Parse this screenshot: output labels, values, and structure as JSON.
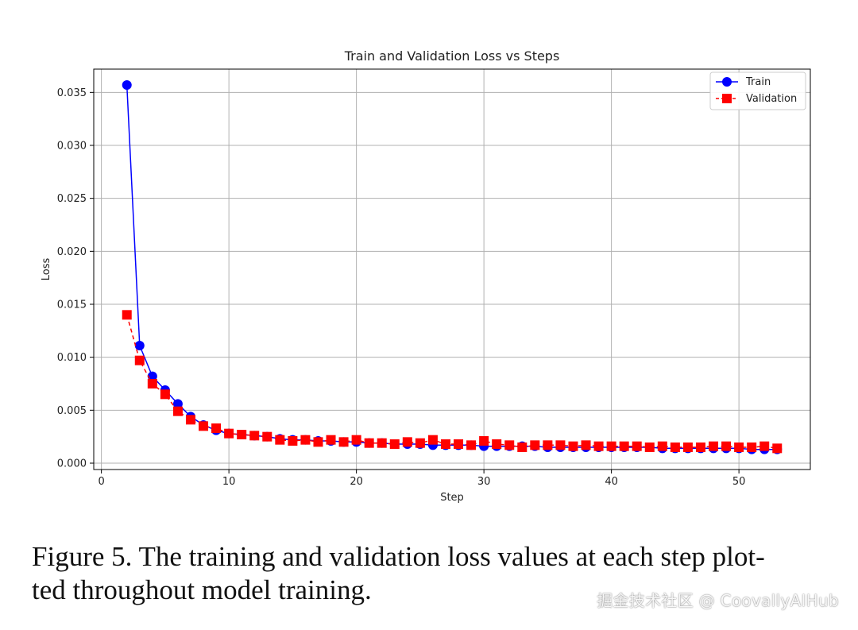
{
  "chart_data": {
    "type": "line",
    "title": "Train and Validation Loss vs Steps",
    "xlabel": "Step",
    "ylabel": "Loss",
    "xlim": [
      -0.6,
      55.6
    ],
    "ylim": [
      -0.0006,
      0.0372
    ],
    "xticks": [
      0,
      10,
      20,
      30,
      40,
      50
    ],
    "xtick_labels": [
      "0",
      "10",
      "20",
      "30",
      "40",
      "50"
    ],
    "yticks": [
      0.0,
      0.005,
      0.01,
      0.015,
      0.02,
      0.025,
      0.03,
      0.035
    ],
    "ytick_labels": [
      "0.000",
      "0.005",
      "0.010",
      "0.015",
      "0.020",
      "0.025",
      "0.030",
      "0.035"
    ],
    "grid": true,
    "legend_position": "top-right",
    "x": [
      2,
      3,
      4,
      5,
      6,
      7,
      8,
      9,
      10,
      11,
      12,
      13,
      14,
      15,
      16,
      17,
      18,
      19,
      20,
      21,
      22,
      23,
      24,
      25,
      26,
      27,
      28,
      29,
      30,
      31,
      32,
      33,
      34,
      35,
      36,
      37,
      38,
      39,
      40,
      41,
      42,
      43,
      44,
      45,
      46,
      47,
      48,
      49,
      50,
      51,
      52,
      53
    ],
    "series": [
      {
        "name": "Train",
        "color": "#0000ff",
        "marker": "circle",
        "linestyle": "solid",
        "values": [
          0.0357,
          0.0111,
          0.0082,
          0.0069,
          0.0056,
          0.0044,
          0.0036,
          0.0031,
          0.0028,
          0.0027,
          0.0026,
          0.0025,
          0.0023,
          0.0022,
          0.0022,
          0.0021,
          0.0021,
          0.002,
          0.002,
          0.0019,
          0.0019,
          0.0018,
          0.0018,
          0.0018,
          0.0017,
          0.0017,
          0.0017,
          0.0017,
          0.0016,
          0.0016,
          0.0016,
          0.0016,
          0.0016,
          0.0015,
          0.0015,
          0.0015,
          0.0015,
          0.0015,
          0.0015,
          0.0015,
          0.0015,
          0.0015,
          0.0014,
          0.0014,
          0.0014,
          0.0014,
          0.0014,
          0.0014,
          0.0014,
          0.0013,
          0.0013,
          0.0013
        ]
      },
      {
        "name": "Validation",
        "color": "#ff0000",
        "marker": "square",
        "linestyle": "dashed",
        "values": [
          0.014,
          0.0097,
          0.0075,
          0.0065,
          0.0049,
          0.0041,
          0.0035,
          0.0033,
          0.0028,
          0.0027,
          0.0026,
          0.0025,
          0.0022,
          0.0021,
          0.0022,
          0.002,
          0.0022,
          0.002,
          0.0022,
          0.0019,
          0.0019,
          0.0018,
          0.002,
          0.0019,
          0.0022,
          0.0018,
          0.0018,
          0.0017,
          0.0021,
          0.0018,
          0.0017,
          0.0015,
          0.0017,
          0.0017,
          0.0017,
          0.0016,
          0.0017,
          0.0016,
          0.0016,
          0.0016,
          0.0016,
          0.0015,
          0.0016,
          0.0015,
          0.0015,
          0.0015,
          0.0016,
          0.0016,
          0.0015,
          0.0015,
          0.0016,
          0.0014
        ]
      }
    ]
  },
  "caption": {
    "line1": "Figure 5. The training and validation loss values at each step plot-",
    "line2": "ted throughout model training."
  },
  "watermark": "掘金技术社区 @ CoovallyAIHub"
}
